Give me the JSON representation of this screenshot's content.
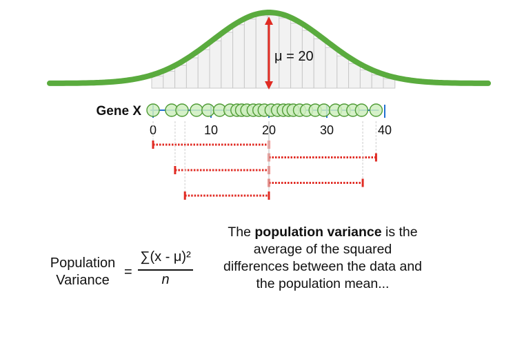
{
  "diagram": {
    "gene_label": "Gene X",
    "mean_label": "μ = 20",
    "axis_ticks": [
      "0",
      "10",
      "20",
      "30",
      "40"
    ],
    "axis_range": [
      0,
      40
    ],
    "mean": 20,
    "data_points": [
      0,
      3.2,
      5.0,
      7.5,
      9.5,
      11.5,
      13.3,
      14.5,
      15.3,
      16.2,
      17.3,
      18.3,
      19.2,
      20.4,
      21.5,
      22.5,
      23.4,
      24.2,
      25.3,
      26.5,
      28.0,
      29.5,
      31.5,
      33.0,
      34.5,
      36.0,
      38.5
    ],
    "difference_points": [
      0,
      38.5,
      3.8,
      36.2,
      5.5
    ],
    "colors": {
      "curve": "#5aab3e",
      "histogram_fill": "#f2f2f2",
      "histogram_stroke": "#c8c8c8",
      "point_fill": "#cfeec0",
      "point_stroke": "#4f9b35",
      "axis": "#1f6fd1",
      "difference": "#e02b23"
    }
  },
  "formula": {
    "lhs_line1": "Population",
    "lhs_line2": "Variance",
    "equals": "=",
    "numerator": "∑(x - μ)²",
    "denominator": "n"
  },
  "description": {
    "prefix": "The ",
    "bold": "population variance",
    "rest": " is the average of the squared differences between the data and the population mean..."
  }
}
